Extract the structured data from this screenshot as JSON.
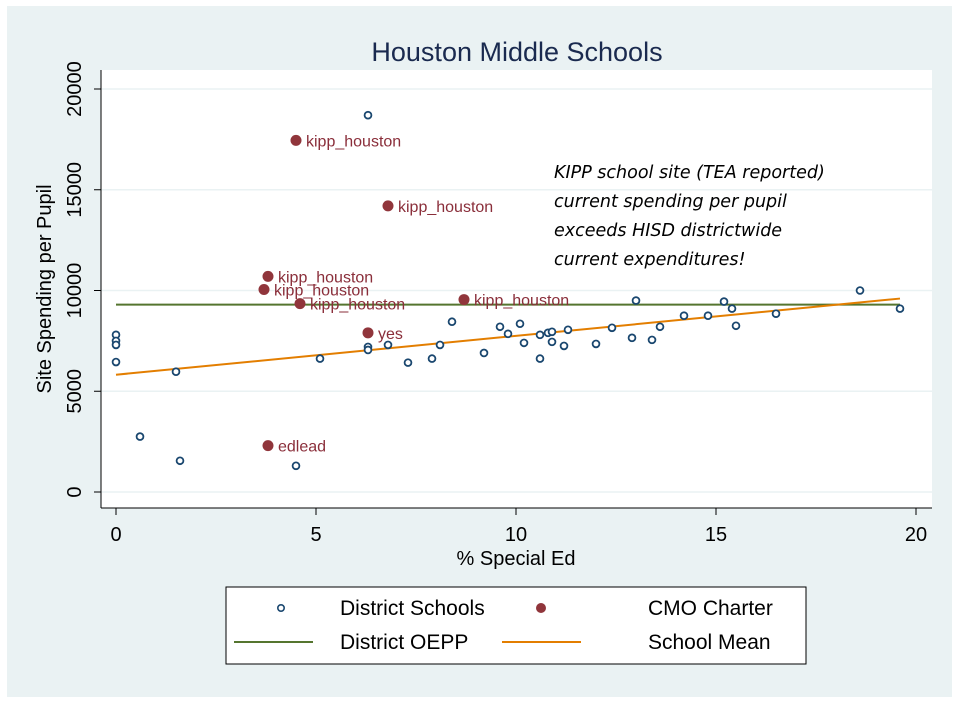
{
  "colors": {
    "frame_bg": "#eaf2f3",
    "plot_bg": "#ffffff",
    "grid": "#eaf2f3",
    "district_marker": "#1a476f",
    "cmo_marker": "#90353b",
    "cmo_label": "#8a2e3a",
    "oepp_line": "#55752f",
    "mean_line": "#e37e00",
    "title": "#1a2a4f"
  },
  "chart_data": {
    "type": "scatter",
    "title": "Houston Middle Schools",
    "xlabel": "% Special Ed",
    "ylabel": "Site Spending per Pupil",
    "xlim": [
      -0.4,
      20.4
    ],
    "ylim": [
      -800,
      20200
    ],
    "xticks": [
      0,
      5,
      10,
      15,
      20
    ],
    "yticks": [
      0,
      5000,
      10000,
      15000,
      20000
    ],
    "grid": true,
    "annotation": [
      "KIPP school site (TEA reported)",
      "current spending per pupil",
      "exceeds HISD districtwide",
      "current expenditures!"
    ],
    "series": [
      {
        "name": "District Schools",
        "kind": "hollow-circle",
        "points": [
          [
            0,
            7800
          ],
          [
            0,
            7500
          ],
          [
            0,
            7300
          ],
          [
            0,
            6450
          ],
          [
            0.6,
            2750
          ],
          [
            1.5,
            5970
          ],
          [
            1.6,
            1550
          ],
          [
            4.5,
            1300
          ],
          [
            5.1,
            6620
          ],
          [
            6.3,
            18700
          ],
          [
            6.3,
            7200
          ],
          [
            6.3,
            7050
          ],
          [
            6.8,
            7300
          ],
          [
            7.3,
            6420
          ],
          [
            7.9,
            6620
          ],
          [
            8.1,
            7300
          ],
          [
            8.4,
            8450
          ],
          [
            9.2,
            6900
          ],
          [
            9.6,
            8200
          ],
          [
            9.8,
            7850
          ],
          [
            10.1,
            8350
          ],
          [
            10.2,
            7400
          ],
          [
            10.6,
            6620
          ],
          [
            10.6,
            7800
          ],
          [
            10.8,
            7900
          ],
          [
            10.9,
            7950
          ],
          [
            10.9,
            7450
          ],
          [
            11.2,
            7250
          ],
          [
            11.3,
            8050
          ],
          [
            12.0,
            7350
          ],
          [
            12.4,
            8150
          ],
          [
            12.9,
            7650
          ],
          [
            13.0,
            9500
          ],
          [
            13.4,
            7550
          ],
          [
            13.6,
            8200
          ],
          [
            14.2,
            8750
          ],
          [
            14.8,
            8750
          ],
          [
            15.2,
            9450
          ],
          [
            15.4,
            9100
          ],
          [
            15.5,
            8250
          ],
          [
            16.5,
            8850
          ],
          [
            18.6,
            10000
          ],
          [
            19.6,
            9100
          ]
        ]
      },
      {
        "name": "CMO Charter",
        "kind": "filled-circle",
        "points": [
          {
            "x": 4.5,
            "y": 17450,
            "label": "kipp_houston"
          },
          {
            "x": 6.8,
            "y": 14200,
            "label": "kipp_houston"
          },
          {
            "x": 3.8,
            "y": 10700,
            "label": "kipp_houston"
          },
          {
            "x": 3.7,
            "y": 10050,
            "label": "kipp_houston"
          },
          {
            "x": 4.6,
            "y": 9350,
            "label": "kipp_houston"
          },
          {
            "x": 8.7,
            "y": 9550,
            "label": "kipp_houston"
          },
          {
            "x": 6.3,
            "y": 7900,
            "label": "yes"
          },
          {
            "x": 3.8,
            "y": 2300,
            "label": "edlead"
          }
        ]
      },
      {
        "name": "District OEPP",
        "kind": "line",
        "points": [
          [
            0,
            9300
          ],
          [
            19.6,
            9300
          ]
        ]
      },
      {
        "name": "School Mean",
        "kind": "line",
        "points": [
          [
            0,
            5820
          ],
          [
            19.6,
            9600
          ]
        ]
      }
    ],
    "legend": {
      "placement": "bottom",
      "entries": [
        "District Schools",
        "CMO Charter",
        "District OEPP",
        "School Mean"
      ]
    }
  }
}
